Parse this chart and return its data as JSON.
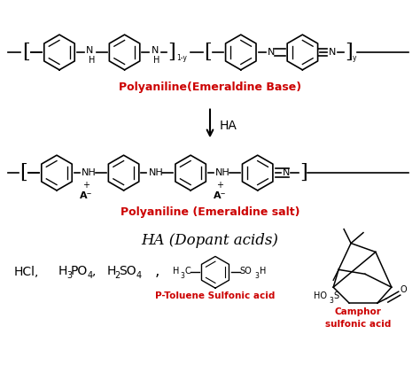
{
  "background_color": "#ffffff",
  "emeraldine_base_label": "Polyaniline(Emeraldine Base)",
  "emeraldine_salt_label": "Polyaniline (Emeraldine salt)",
  "ha_arrow_label": "HA",
  "ha_dopant_title": "HA (Dopant acids)",
  "p_toluene_label": "P-Toluene Sulfonic acid",
  "camphor_label": "Camphor\nsulfonic acid",
  "label_color": "#cc0000",
  "text_color": "#000000"
}
